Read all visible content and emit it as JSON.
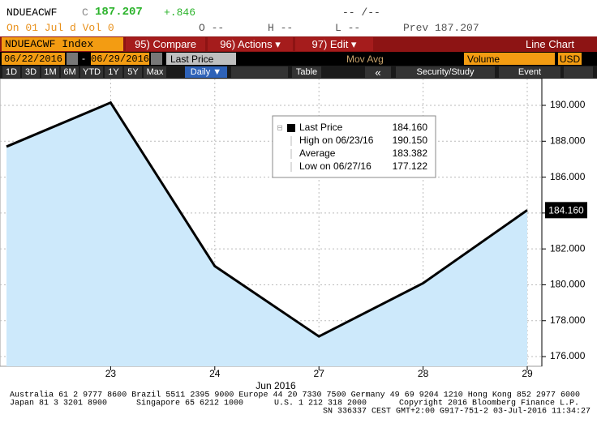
{
  "header": {
    "ticker": "NDUEACWF",
    "c": "C",
    "price": "187.207",
    "change": "+.846",
    "time": "-- /--",
    "on": "On 01 Jul d Vol 0",
    "open": "O --",
    "high": "H --",
    "low": "L --",
    "prev": "Prev 187.207"
  },
  "menu": {
    "security": "NDUEACWF Index",
    "compare": "95) Compare",
    "actions": "96) Actions ▾",
    "edit": "97) Edit ▾",
    "chart_type": "Line Chart"
  },
  "controls": {
    "start": "06/22/2016",
    "dash": "-",
    "end": "06/29/2016",
    "field": "Last Price",
    "mov_avg": "Mov Avg",
    "volume": "Volume",
    "currency": "USD"
  },
  "toolbar": {
    "ranges": [
      "1D",
      "3D",
      "1M",
      "6M",
      "YTD",
      "1Y",
      "5Y",
      "Max"
    ],
    "period": "Daily ▼",
    "table": "Table",
    "back": "«",
    "security_study": "Security/Study",
    "event": "Event"
  },
  "chart_data": {
    "type": "area",
    "x_label": "Jun 2016",
    "categories": [
      null,
      "23",
      "24",
      "27",
      "28",
      "29"
    ],
    "values": [
      187.7,
      190.15,
      181.04,
      177.122,
      180.09,
      184.16
    ],
    "color": "#000000",
    "fill_color": "#cde9fb",
    "ylim": [
      175.46,
      191.49
    ],
    "yticks": [
      {
        "value": 176,
        "label": "176.000"
      },
      {
        "value": 178,
        "label": "178.000"
      },
      {
        "value": 180,
        "label": "180.000"
      },
      {
        "value": 182,
        "label": "182.000"
      },
      {
        "value": 184,
        "label": "184.000"
      },
      {
        "value": 186,
        "label": "186.000"
      },
      {
        "value": 188,
        "label": "188.000"
      },
      {
        "value": 190,
        "label": "190.000"
      }
    ],
    "grid": true,
    "last_value_label": "184.160",
    "legend": [
      {
        "label": "Last Price",
        "value": "184.160"
      },
      {
        "label": "High on 06/23/16",
        "value": "190.150"
      },
      {
        "label": "Average",
        "value": "183.382"
      },
      {
        "label": "Low on 06/27/16",
        "value": "177.122"
      }
    ]
  },
  "footer": {
    "line1": "Australia 61 2 9777 8600 Brazil 5511 2395 9000 Europe 44 20 7330 7500 Germany 49 69 9204 1210 Hong Kong 852 2977 6000",
    "line2": [
      "Japan 81 3 3201 8900",
      "Singapore 65 6212 1000",
      "U.S. 1 212 318 2000",
      "Copyright 2016 Bloomberg Finance L.P."
    ],
    "line3": "SN 336337 CEST GMT+2:00 G917-751-2 03-Jul-2016 11:34:27"
  }
}
